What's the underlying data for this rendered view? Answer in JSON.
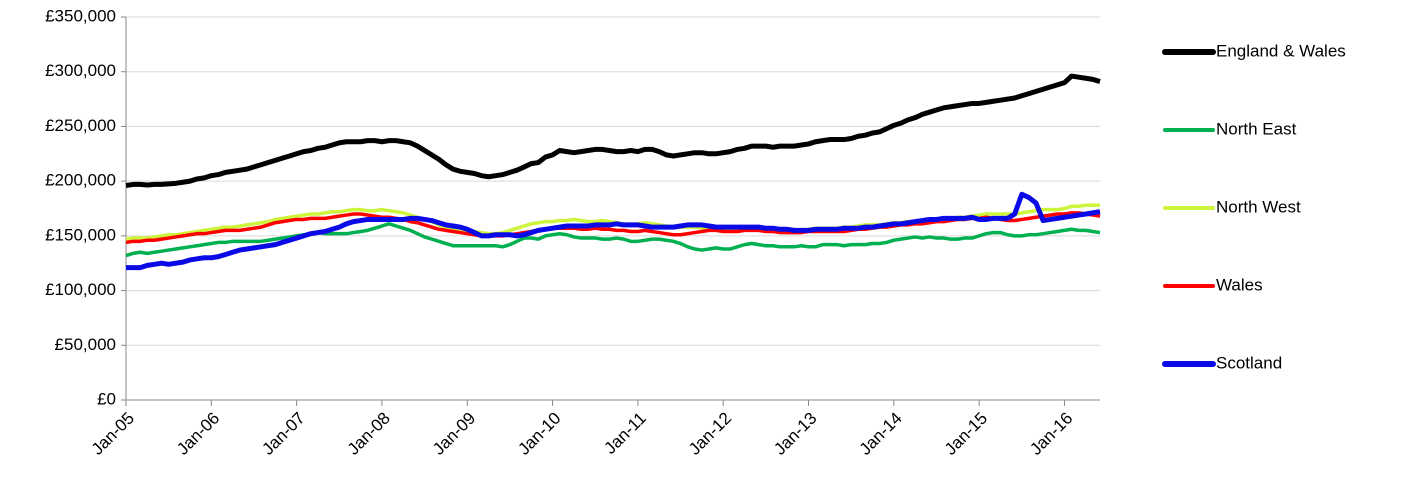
{
  "chart_data": {
    "type": "line",
    "categories": [
      "Jan-05",
      null,
      null,
      null,
      null,
      null,
      null,
      null,
      null,
      null,
      null,
      null,
      "Jan-06",
      null,
      null,
      null,
      null,
      null,
      null,
      null,
      null,
      null,
      null,
      null,
      "Jan-07",
      null,
      null,
      null,
      null,
      null,
      null,
      null,
      null,
      null,
      null,
      null,
      "Jan-08",
      null,
      null,
      null,
      null,
      null,
      null,
      null,
      null,
      null,
      null,
      null,
      "Jan-09",
      null,
      null,
      null,
      null,
      null,
      null,
      null,
      null,
      null,
      null,
      null,
      "Jan-10",
      null,
      null,
      null,
      null,
      null,
      null,
      null,
      null,
      null,
      null,
      null,
      "Jan-11",
      null,
      null,
      null,
      null,
      null,
      null,
      null,
      null,
      null,
      null,
      null,
      "Jan-12",
      null,
      null,
      null,
      null,
      null,
      null,
      null,
      null,
      null,
      null,
      null,
      "Jan-13",
      null,
      null,
      null,
      null,
      null,
      null,
      null,
      null,
      null,
      null,
      null,
      "Jan-14",
      null,
      null,
      null,
      null,
      null,
      null,
      null,
      null,
      null,
      null,
      null,
      "Jan-15",
      null,
      null,
      null,
      null,
      null,
      null,
      null,
      null,
      null,
      null,
      null,
      "Jan-16",
      null,
      null,
      null,
      null,
      null
    ],
    "series": [
      {
        "name": "England & Wales",
        "color": "#000000",
        "values": [
          196000,
          197000,
          197000,
          196500,
          197000,
          197000,
          197500,
          198000,
          199000,
          200000,
          202000,
          203000,
          205000,
          206000,
          208000,
          209000,
          210000,
          211000,
          213000,
          215000,
          217000,
          219000,
          221000,
          223000,
          225000,
          227000,
          228000,
          230000,
          231000,
          233000,
          235000,
          236000,
          236000,
          236000,
          237000,
          237000,
          236000,
          237000,
          237000,
          236000,
          235000,
          232000,
          228000,
          224000,
          220000,
          215000,
          211000,
          209000,
          208000,
          207000,
          205000,
          204000,
          205000,
          206000,
          208000,
          210000,
          213000,
          216000,
          217000,
          222000,
          224000,
          228000,
          227000,
          226000,
          227000,
          228000,
          229000,
          229000,
          228000,
          227000,
          227000,
          228000,
          227000,
          229000,
          229000,
          227000,
          224000,
          223000,
          224000,
          225000,
          226000,
          226000,
          225000,
          225000,
          226000,
          227000,
          229000,
          230000,
          232000,
          232000,
          232000,
          231000,
          232000,
          232000,
          232000,
          233000,
          234000,
          236000,
          237000,
          238000,
          238000,
          238000,
          239000,
          241000,
          242000,
          244000,
          245000,
          248000,
          251000,
          253000,
          256000,
          258000,
          261000,
          263000,
          265000,
          267000,
          268000,
          269000,
          270000,
          271000,
          271000,
          272000,
          273000,
          274000,
          275000,
          276000,
          278000,
          280000,
          282000,
          284000,
          286000,
          288000,
          290000,
          296000,
          295000,
          294000,
          293000,
          291000
        ]
      },
      {
        "name": "North East",
        "color": "#00b050",
        "values": [
          132000,
          134000,
          135000,
          134000,
          135000,
          136000,
          137000,
          138000,
          139000,
          140000,
          141000,
          142000,
          143000,
          144000,
          144000,
          145000,
          145000,
          145000,
          145000,
          145000,
          146000,
          147000,
          148000,
          149000,
          150000,
          151000,
          152000,
          153000,
          152000,
          152000,
          152000,
          152000,
          153000,
          154000,
          155000,
          157000,
          159000,
          161000,
          159000,
          157000,
          155000,
          152000,
          149000,
          147000,
          145000,
          143000,
          141000,
          141000,
          141000,
          141000,
          141000,
          141000,
          141000,
          140000,
          142000,
          145000,
          148000,
          148000,
          147000,
          150000,
          151000,
          152000,
          151000,
          149000,
          148000,
          148000,
          148000,
          147000,
          147000,
          148000,
          147000,
          145000,
          145000,
          146000,
          147000,
          147000,
          146000,
          145000,
          143000,
          140000,
          138000,
          137000,
          138000,
          139000,
          138000,
          138000,
          140000,
          142000,
          143000,
          142000,
          141000,
          141000,
          140000,
          140000,
          140000,
          141000,
          140000,
          140000,
          142000,
          142000,
          142000,
          141000,
          142000,
          142000,
          142000,
          143000,
          143000,
          144000,
          146000,
          147000,
          148000,
          149000,
          148000,
          149000,
          148000,
          148000,
          147000,
          147000,
          148000,
          148000,
          150000,
          152000,
          153000,
          153000,
          151000,
          150000,
          150000,
          151000,
          151000,
          152000,
          153000,
          154000,
          155000,
          156000,
          155000,
          155000,
          154000,
          153000
        ]
      },
      {
        "name": "North West",
        "color": "#ccf53b",
        "values": [
          147000,
          148000,
          148000,
          148000,
          149000,
          150000,
          151000,
          151000,
          152000,
          153000,
          154000,
          155000,
          156000,
          157000,
          158000,
          158000,
          159000,
          160000,
          161000,
          162000,
          163000,
          165000,
          166000,
          167000,
          168000,
          169000,
          170000,
          170000,
          171000,
          172000,
          172000,
          173000,
          174000,
          174000,
          173000,
          173000,
          174000,
          173000,
          172000,
          171000,
          169000,
          167000,
          165000,
          163000,
          160000,
          158000,
          156000,
          155000,
          154000,
          154000,
          153000,
          152000,
          152000,
          153000,
          155000,
          157000,
          159000,
          161000,
          162000,
          163000,
          163000,
          164000,
          164000,
          165000,
          164000,
          163000,
          163000,
          164000,
          163000,
          162000,
          161000,
          160000,
          161000,
          162000,
          161000,
          160000,
          159000,
          158000,
          158000,
          158000,
          158000,
          157000,
          157000,
          157000,
          157000,
          157000,
          157000,
          157000,
          157000,
          157000,
          156000,
          156000,
          156000,
          155000,
          155000,
          155000,
          156000,
          157000,
          157000,
          157000,
          157000,
          158000,
          158000,
          159000,
          160000,
          160000,
          160000,
          161000,
          162000,
          162000,
          163000,
          163000,
          164000,
          164000,
          165000,
          165000,
          166000,
          167000,
          167000,
          168000,
          169000,
          170000,
          170000,
          170000,
          170000,
          170000,
          171000,
          172000,
          173000,
          174000,
          174000,
          174000,
          175000,
          177000,
          177000,
          178000,
          178000,
          178000
        ]
      },
      {
        "name": "Wales",
        "color": "#ff0000",
        "values": [
          144000,
          145000,
          145000,
          146000,
          146000,
          147000,
          148000,
          149000,
          150000,
          151000,
          152000,
          152000,
          153000,
          154000,
          155000,
          155000,
          155000,
          156000,
          157000,
          158000,
          160000,
          162000,
          163000,
          164000,
          165000,
          165000,
          166000,
          166000,
          166000,
          167000,
          168000,
          169000,
          170000,
          170000,
          169000,
          168000,
          167000,
          167000,
          166000,
          165000,
          163000,
          162000,
          160000,
          158000,
          156000,
          155000,
          154000,
          153000,
          152000,
          151000,
          150000,
          150000,
          150000,
          150000,
          151000,
          152000,
          153000,
          154000,
          155000,
          156000,
          157000,
          157000,
          157000,
          157000,
          156000,
          156000,
          157000,
          156000,
          156000,
          155000,
          155000,
          154000,
          154000,
          155000,
          154000,
          153000,
          152000,
          151000,
          151000,
          152000,
          153000,
          154000,
          155000,
          155000,
          154000,
          154000,
          154000,
          155000,
          155000,
          155000,
          154000,
          154000,
          153000,
          153000,
          153000,
          153000,
          154000,
          154000,
          154000,
          154000,
          154000,
          154000,
          155000,
          156000,
          156000,
          157000,
          158000,
          158000,
          159000,
          160000,
          160000,
          161000,
          161000,
          162000,
          163000,
          163000,
          164000,
          165000,
          165000,
          166000,
          166000,
          167000,
          166000,
          165000,
          164000,
          164000,
          165000,
          166000,
          167000,
          168000,
          169000,
          170000,
          170000,
          171000,
          171000,
          170000,
          169000,
          168000
        ]
      },
      {
        "name": "Scotland",
        "color": "#0a0ae6",
        "values": [
          121000,
          121000,
          121000,
          123000,
          124000,
          125000,
          124000,
          125000,
          126000,
          128000,
          129000,
          130000,
          130000,
          131000,
          133000,
          135000,
          137000,
          138000,
          139000,
          140000,
          141000,
          142000,
          144000,
          146000,
          148000,
          150000,
          152000,
          153000,
          154000,
          156000,
          158000,
          161000,
          163000,
          164000,
          165000,
          165000,
          165000,
          165000,
          165000,
          165000,
          166000,
          166000,
          165000,
          164000,
          162000,
          160000,
          159000,
          158000,
          156000,
          153000,
          150000,
          150000,
          151000,
          151000,
          151000,
          150000,
          151000,
          153000,
          155000,
          156000,
          157000,
          158000,
          159000,
          159000,
          159000,
          159000,
          160000,
          160000,
          160000,
          161000,
          160000,
          160000,
          160000,
          159000,
          158000,
          158000,
          158000,
          158000,
          159000,
          160000,
          160000,
          160000,
          159000,
          158000,
          158000,
          158000,
          158000,
          158000,
          158000,
          158000,
          157000,
          157000,
          156000,
          156000,
          155000,
          155000,
          155000,
          156000,
          156000,
          156000,
          156000,
          157000,
          157000,
          157000,
          158000,
          158000,
          159000,
          160000,
          161000,
          161000,
          162000,
          163000,
          164000,
          165000,
          165000,
          166000,
          166000,
          166000,
          166000,
          167000,
          165000,
          165000,
          166000,
          166000,
          166000,
          170000,
          188000,
          185000,
          180000,
          164000,
          165000,
          166000,
          167000,
          168000,
          169000,
          170000,
          171000,
          172000
        ]
      }
    ],
    "ylim": [
      0,
      350000
    ],
    "yticks": [
      {
        "value": 0,
        "label": "£0"
      },
      {
        "value": 50000,
        "label": "£50,000"
      },
      {
        "value": 100000,
        "label": "£100,000"
      },
      {
        "value": 150000,
        "label": "£150,000"
      },
      {
        "value": 200000,
        "label": "£200,000"
      },
      {
        "value": 250000,
        "label": "£250,000"
      },
      {
        "value": 300000,
        "label": "£300,000"
      },
      {
        "value": 350000,
        "label": "£350,000"
      }
    ],
    "grid": true,
    "legend": "right"
  }
}
